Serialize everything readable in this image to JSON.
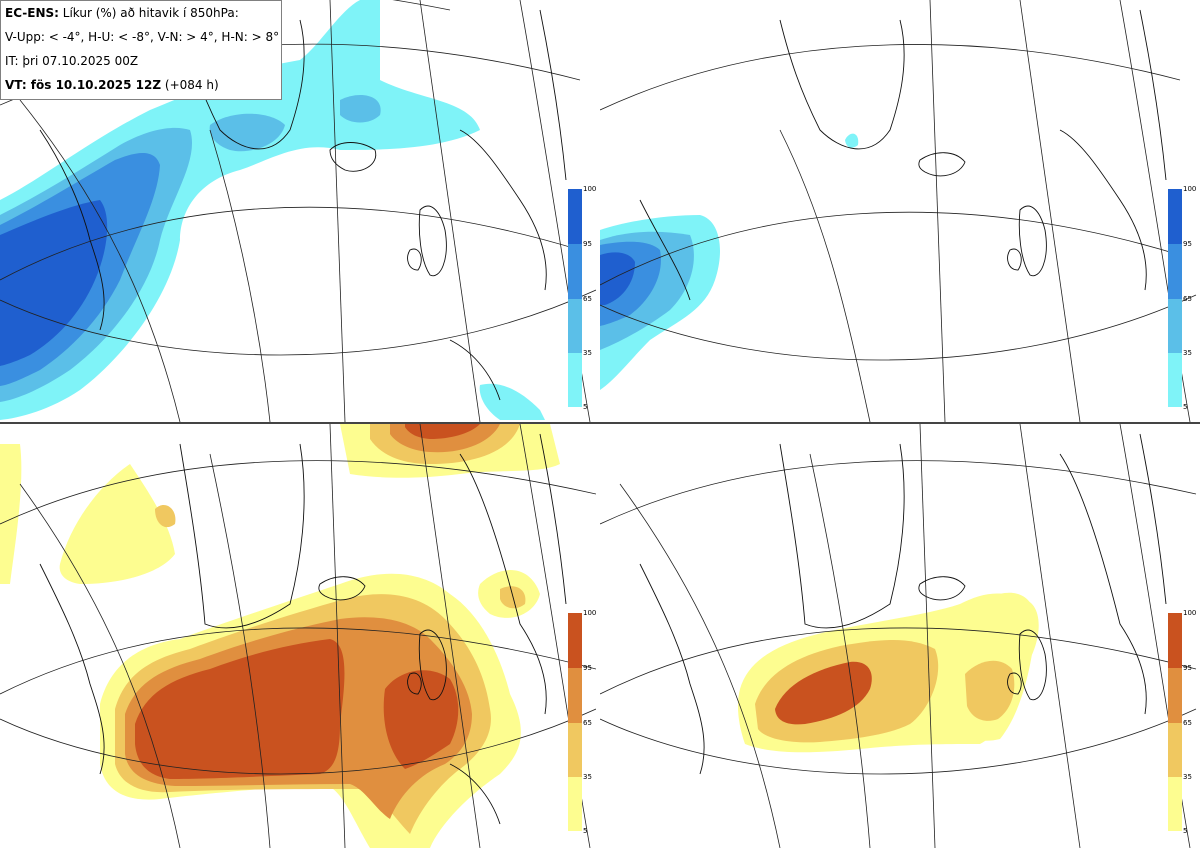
{
  "info": {
    "line1_bold": "EC-ENS:",
    "line1_rest": " Líkur (%) að hitavik í 850hPa:",
    "line2": "V-Upp: < -4°, H-U: < -8°, V-N: > 4°, H-N: > 8°",
    "line3": "IT: þri 07.10.2025 00Z",
    "line4_bold": "VT: fös 10.10.2025 12Z",
    "line4_rest": " (+084 h)"
  },
  "colorbars": {
    "cold": {
      "ticks": [
        "100",
        "95",
        "65",
        "35",
        "5"
      ],
      "colors": [
        "#1f5fcf",
        "#3a8fe0",
        "#5bbfe8",
        "#7ff3f8"
      ]
    },
    "warm": {
      "ticks": [
        "100",
        "95",
        "65",
        "35",
        "5"
      ],
      "colors": [
        "#c9521f",
        "#e08f3f",
        "#f0c860",
        "#fdfd90"
      ]
    }
  },
  "panels": [
    {
      "name": "V-Upp",
      "scheme": "cold"
    },
    {
      "name": "H-U",
      "scheme": "cold"
    },
    {
      "name": "V-N",
      "scheme": "warm"
    },
    {
      "name": "H-N",
      "scheme": "warm"
    }
  ]
}
